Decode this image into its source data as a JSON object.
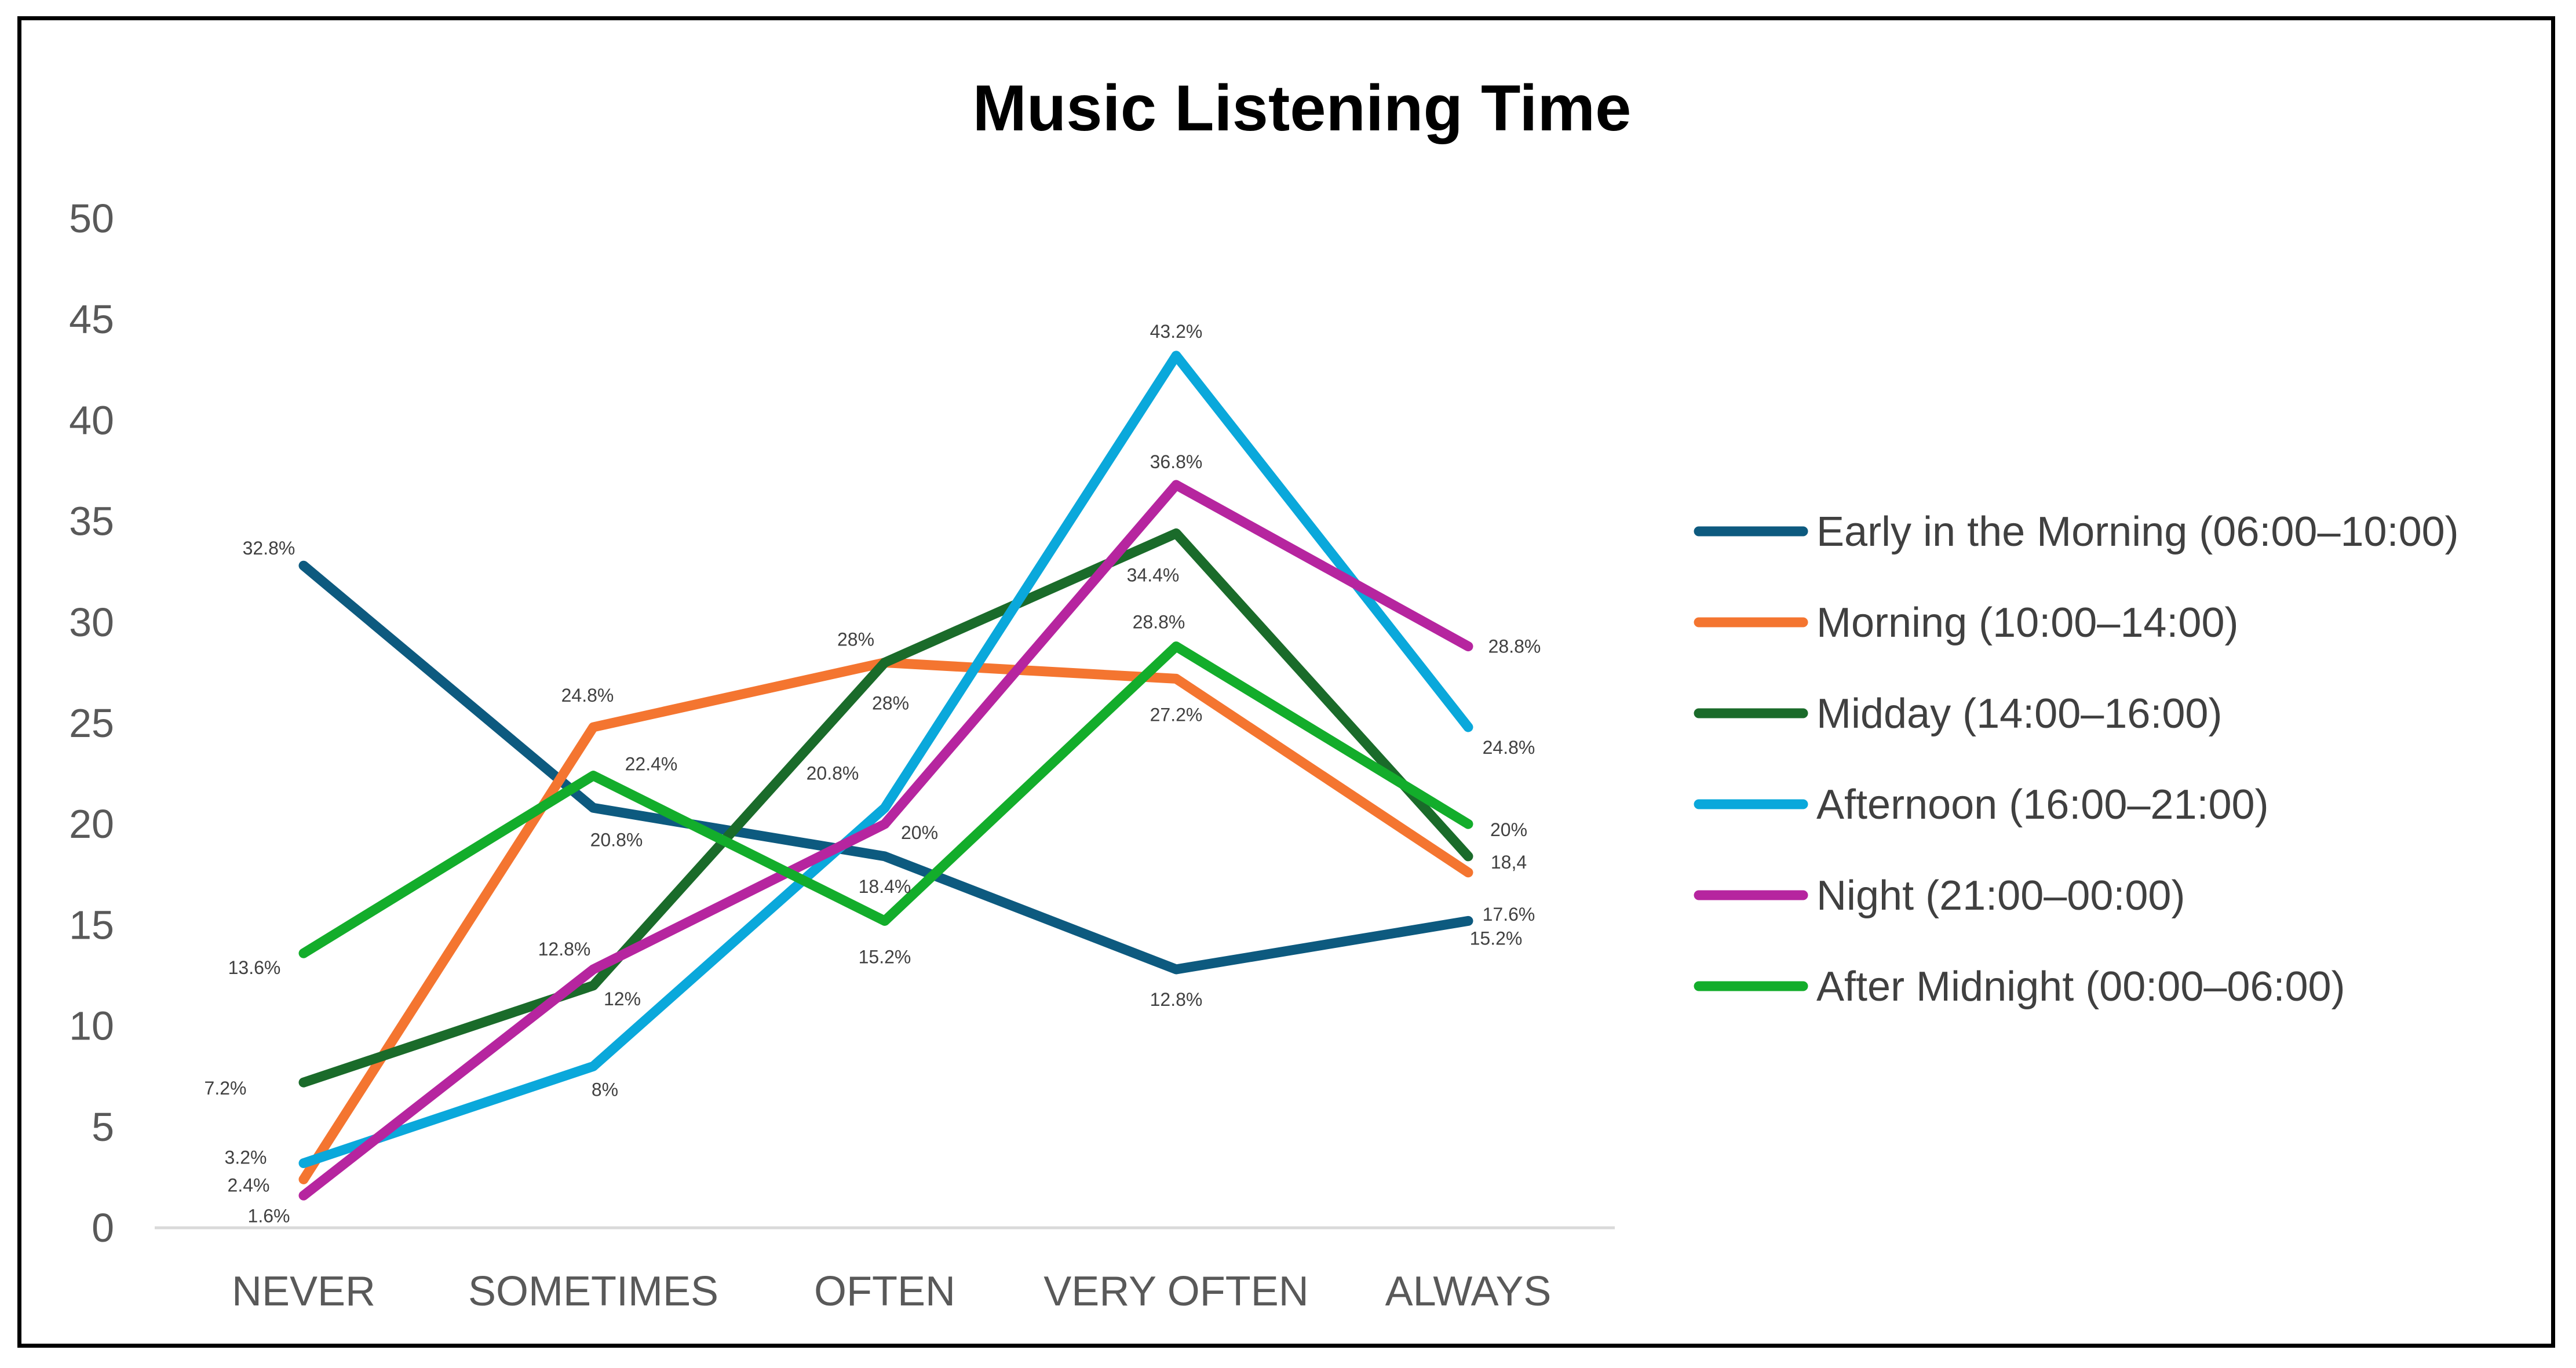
{
  "chart_data": {
    "type": "line",
    "title": "Music Listening Time",
    "xlabel": "",
    "ylabel": "",
    "categories": [
      "NEVER",
      "SOMETIMES",
      "OFTEN",
      "VERY OFTEN",
      "ALWAYS"
    ],
    "ylim": [
      0,
      50
    ],
    "yticks": [
      "0",
      "5",
      "10",
      "15",
      "20",
      "25",
      "30",
      "35",
      "40",
      "45",
      "50"
    ],
    "grid": false,
    "legend_position": "right",
    "series": [
      {
        "name": "Early in the Morning (06:00–10:00)",
        "color": "#0d5a7f",
        "values": [
          32.8,
          20.8,
          18.4,
          12.8,
          15.2
        ],
        "labels": [
          "32.8%",
          "20.8%",
          "18.4%",
          "12.8%",
          "15.2%"
        ]
      },
      {
        "name": "Morning (10:00–14:00)",
        "color": "#f47530",
        "values": [
          2.4,
          24.8,
          28,
          27.2,
          17.6
        ],
        "labels": [
          "2.4%",
          "24.8%",
          "28%",
          "27.2%",
          "17.6%"
        ]
      },
      {
        "name": "Midday (14:00–16:00)",
        "color": "#1a6b2a",
        "values": [
          7.2,
          12,
          28,
          34.4,
          18.4
        ],
        "labels": [
          "7.2%",
          "12%",
          "28%",
          "34.4%",
          "18,4"
        ]
      },
      {
        "name": "Afternoon (16:00–21:00)",
        "color": "#0aa8db",
        "values": [
          3.2,
          8,
          20.8,
          43.2,
          24.8
        ],
        "labels": [
          "3.2%",
          "8%",
          "20.8%",
          "43.2%",
          "24.8%"
        ]
      },
      {
        "name": "Night (21:00–00:00)",
        "color": "#b6259f",
        "values": [
          1.6,
          12.8,
          20,
          36.8,
          28.8
        ],
        "labels": [
          "1.6%",
          "12.8%",
          "20%",
          "36.8%",
          "28.8%"
        ]
      },
      {
        "name": "After Midnight (00:00–06:00)",
        "color": "#13ad2b",
        "values": [
          13.6,
          22.4,
          15.2,
          28.8,
          20
        ],
        "labels": [
          "13.6%",
          "22.4%",
          "15.2%",
          "28.8%",
          "20%"
        ]
      }
    ]
  }
}
